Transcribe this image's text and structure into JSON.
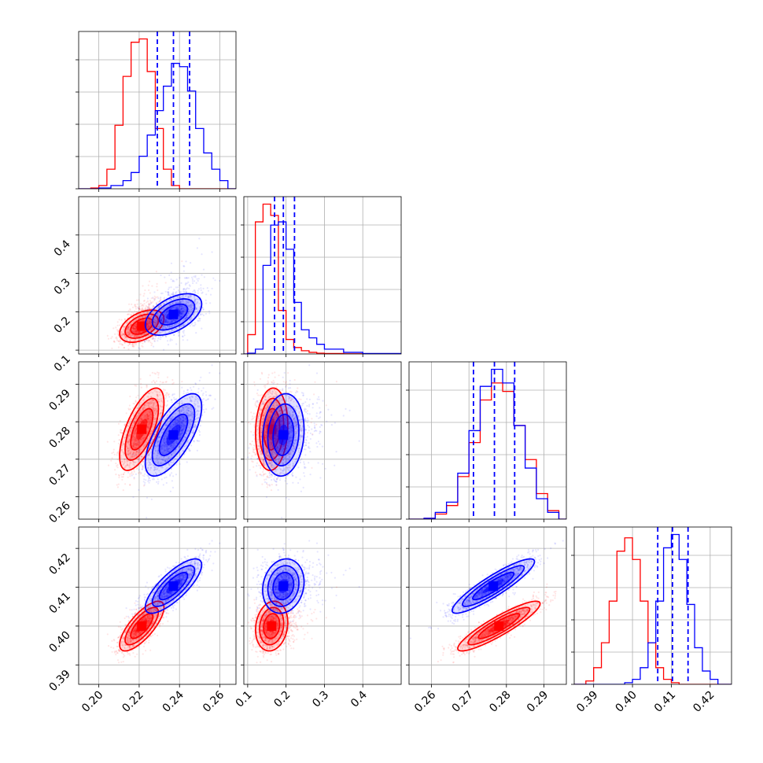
{
  "colors": {
    "red": "#ff0000",
    "blue": "#0000ff",
    "grid": "#b0b0b0",
    "frame": "#000000"
  },
  "chart_data": {
    "type": "corner",
    "title": "",
    "grid": true,
    "parameters": [
      {
        "range": [
          0.19,
          0.268
        ],
        "ticks": [
          0.2,
          0.22,
          0.24,
          0.26
        ],
        "tick_labels": [
          "0.20",
          "0.22",
          "0.24",
          "0.26"
        ]
      },
      {
        "range": [
          0.09,
          0.5
        ],
        "ticks": [
          0.1,
          0.2,
          0.3,
          0.4
        ],
        "tick_labels": [
          "0.1",
          "0.2",
          "0.3",
          "0.4"
        ]
      },
      {
        "range": [
          0.254,
          0.296
        ],
        "ticks": [
          0.26,
          0.27,
          0.28,
          0.29
        ],
        "tick_labels": [
          "0.26",
          "0.27",
          "0.28",
          "0.29"
        ]
      },
      {
        "range": [
          0.385,
          0.4255
        ],
        "ticks": [
          0.39,
          0.4,
          0.41,
          0.42
        ],
        "tick_labels": [
          "0.39",
          "0.40",
          "0.41",
          "0.42"
        ]
      }
    ],
    "series": [
      {
        "color": "#ff0000",
        "mean": [
          0.2213,
          0.1625,
          0.278,
          0.4
        ],
        "sd": [
          0.0055,
          0.021,
          0.0055,
          0.0032
        ],
        "corr": [
          [
            1.0,
            0.45,
            0.65,
            0.75
          ],
          [
            0.45,
            1.0,
            0.1,
            0.15
          ],
          [
            0.65,
            0.1,
            1.0,
            0.9
          ],
          [
            0.75,
            0.15,
            0.9,
            1.0
          ]
        ],
        "histograms": [
          {
            "edges": [
              0.196,
              0.2,
              0.204,
              0.208,
              0.212,
              0.216,
              0.22,
              0.224,
              0.228,
              0.232,
              0.236,
              0.24
            ],
            "counts": [
              0.5,
              2,
              12,
              39,
              69,
              90,
              92,
              72,
              37,
              12,
              2
            ]
          },
          {
            "edges": [
              0.1,
              0.12,
              0.14,
              0.16,
              0.18,
              0.2,
              0.22,
              0.24,
              0.26,
              0.28,
              0.3,
              0.35,
              0.4,
              0.5
            ],
            "counts": [
              12,
              82,
              93,
              86,
              27,
              9,
              4,
              2,
              1,
              0.5,
              0.3,
              0.1,
              0.05
            ]
          },
          {
            "edges": [
              0.258,
              0.261,
              0.264,
              0.267,
              0.27,
              0.273,
              0.276,
              0.279,
              0.282,
              0.285,
              0.288,
              0.291,
              0.294
            ],
            "counts": [
              0.5,
              3,
              8,
              25,
              45,
              70,
              80,
              75,
              55,
              35,
              15,
              5
            ]
          },
          {
            "edges": [
              0.388,
              0.39,
              0.392,
              0.394,
              0.396,
              0.398,
              0.4,
              0.402,
              0.404,
              0.406,
              0.408,
              0.41,
              0.412
            ],
            "counts": [
              2,
              10,
              25,
              50,
              80,
              88,
              75,
              50,
              25,
              10,
              3,
              1
            ]
          }
        ]
      },
      {
        "color": "#0000ff",
        "mean": [
          0.237,
          0.193,
          0.2765,
          0.4103
        ],
        "sd": [
          0.007,
          0.027,
          0.0055,
          0.0035
        ],
        "corr": [
          [
            1.0,
            0.5,
            0.68,
            0.78
          ],
          [
            0.5,
            1.0,
            0.12,
            0.15
          ],
          [
            0.68,
            0.12,
            1.0,
            0.9
          ],
          [
            0.78,
            0.15,
            0.9,
            1.0
          ]
        ],
        "quantiles": [
          [
            0.229,
            0.237,
            0.245
          ],
          [
            0.17,
            0.193,
            0.222
          ],
          [
            0.2712,
            0.2768,
            0.2822
          ],
          [
            0.4065,
            0.4103,
            0.4143
          ]
        ],
        "histograms": [
          {
            "edges": [
              0.2,
              0.206,
              0.212,
              0.216,
              0.22,
              0.224,
              0.228,
              0.232,
              0.236,
              0.24,
              0.244,
              0.248,
              0.252,
              0.256,
              0.26,
              0.264
            ],
            "counts": [
              0.5,
              2,
              5,
              10,
              20,
              33,
              48,
              63,
              77,
              75,
              60,
              37,
              22,
              12,
              5
            ]
          },
          {
            "edges": [
              0.1,
              0.12,
              0.14,
              0.16,
              0.18,
              0.2,
              0.22,
              0.24,
              0.26,
              0.28,
              0.3,
              0.35,
              0.4,
              0.5
            ],
            "counts": [
              0.5,
              3,
              55,
              80,
              82,
              65,
              32,
              15,
              10,
              6,
              3,
              1,
              0.3
            ]
          },
          {
            "edges": [
              0.258,
              0.261,
              0.264,
              0.267,
              0.27,
              0.273,
              0.276,
              0.279,
              0.282,
              0.285,
              0.288,
              0.291,
              0.294
            ],
            "counts": [
              0.5,
              4,
              10,
              27,
              52,
              78,
              88,
              80,
              55,
              30,
              12,
              4
            ]
          },
          {
            "edges": [
              0.398,
              0.4,
              0.402,
              0.404,
              0.406,
              0.408,
              0.41,
              0.412,
              0.414,
              0.416,
              0.418,
              0.42,
              0.422
            ],
            "counts": [
              1,
              3,
              10,
              25,
              50,
              82,
              90,
              75,
              48,
              22,
              8,
              3
            ]
          }
        ]
      }
    ]
  }
}
